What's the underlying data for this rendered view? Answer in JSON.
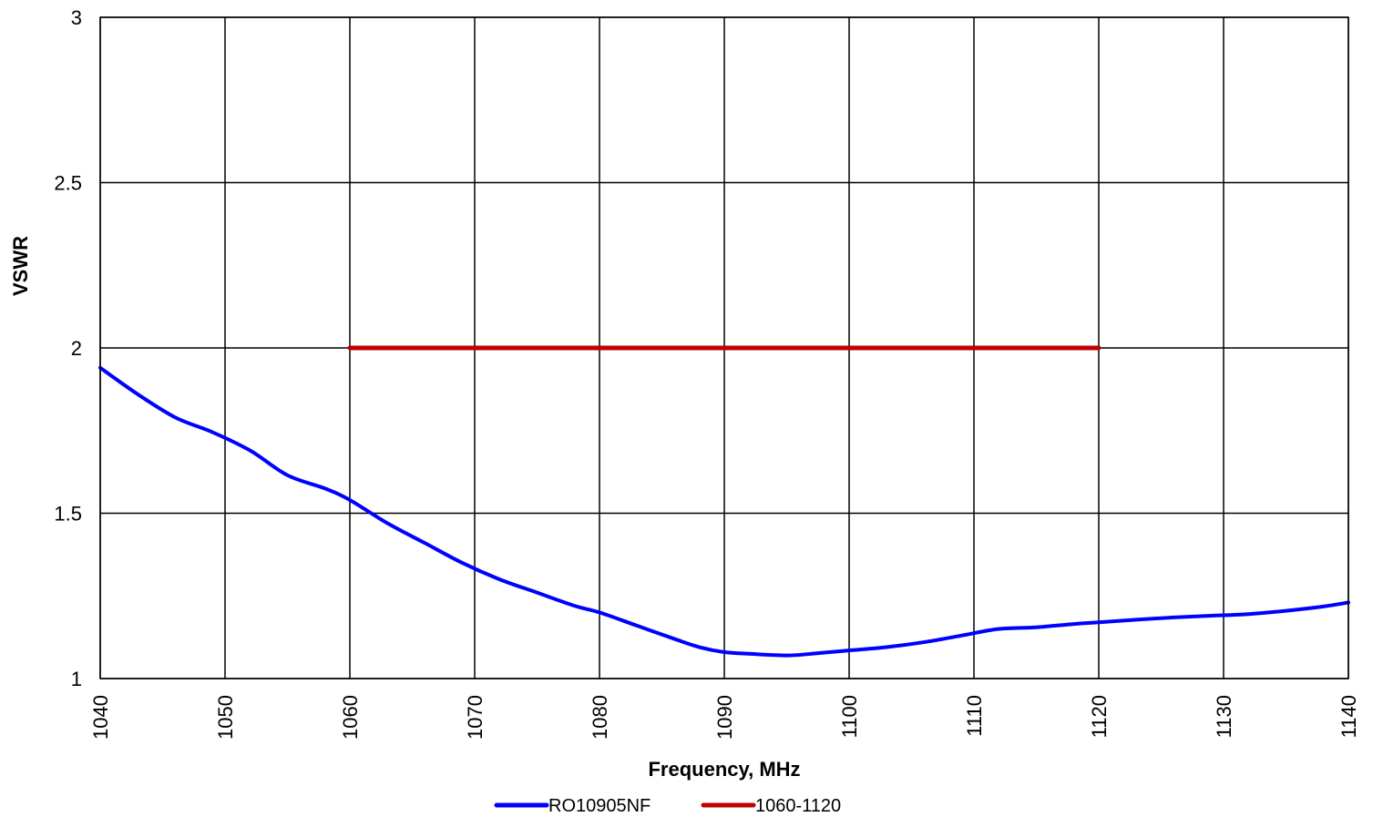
{
  "chart_data": {
    "type": "line",
    "title": "",
    "xlabel": "Frequency, MHz",
    "ylabel": "VSWR",
    "xlim": [
      1040,
      1140
    ],
    "ylim": [
      1,
      3
    ],
    "x_ticks": [
      "1040",
      "1050",
      "1060",
      "1070",
      "1080",
      "1090",
      "1100",
      "1110",
      "1120",
      "1130",
      "1140"
    ],
    "y_ticks": [
      "1",
      "1.5",
      "2",
      "2.5",
      "3"
    ],
    "grid": true,
    "legend_position": "bottom",
    "series": [
      {
        "name": "RO10905NF",
        "color": "#0000ff",
        "x": [
          1040,
          1043,
          1046,
          1049,
          1052,
          1055,
          1058,
          1060,
          1063,
          1066,
          1069,
          1072,
          1075,
          1078,
          1080,
          1083,
          1086,
          1088,
          1090,
          1092,
          1095,
          1097,
          1100,
          1103,
          1106,
          1109,
          1112,
          1115,
          1118,
          1120,
          1123,
          1126,
          1129,
          1132,
          1135,
          1138,
          1140
        ],
        "values": [
          1.94,
          1.86,
          1.79,
          1.745,
          1.69,
          1.615,
          1.575,
          1.54,
          1.47,
          1.41,
          1.35,
          1.3,
          1.26,
          1.22,
          1.2,
          1.16,
          1.12,
          1.095,
          1.08,
          1.075,
          1.07,
          1.075,
          1.085,
          1.095,
          1.11,
          1.13,
          1.15,
          1.155,
          1.165,
          1.17,
          1.178,
          1.185,
          1.19,
          1.195,
          1.205,
          1.218,
          1.23
        ]
      },
      {
        "name": "1060-1120",
        "color": "#c00000",
        "x": [
          1060,
          1120
        ],
        "values": [
          2,
          2
        ]
      }
    ]
  }
}
